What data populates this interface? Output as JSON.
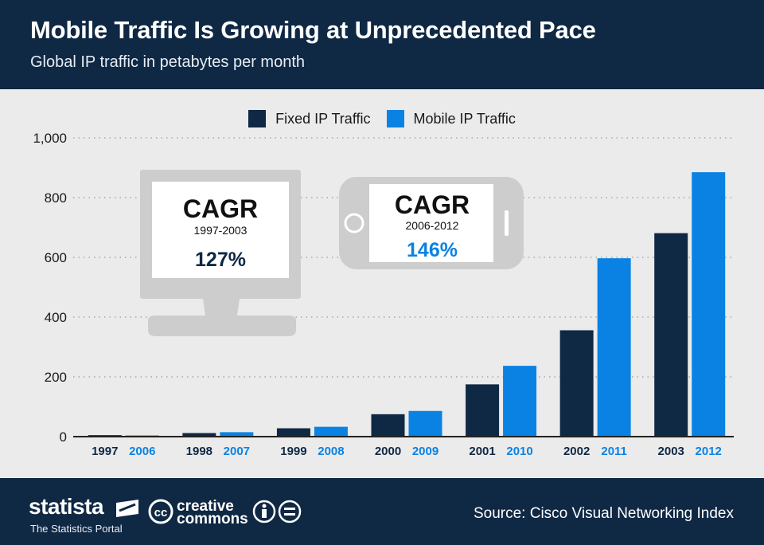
{
  "header": {
    "title": "Mobile Traffic Is Growing at Unprecedented Pace",
    "subtitle": "Global IP traffic in petabytes per month"
  },
  "legend": {
    "fixed_label": "Fixed IP Traffic",
    "mobile_label": "Mobile IP Traffic"
  },
  "colors": {
    "fixed": "#0f2844",
    "mobile": "#0a82e4",
    "device": "#cdcdcd"
  },
  "monitor_callout": {
    "title": "CAGR",
    "period": "1997-2003",
    "value": "127%"
  },
  "phone_callout": {
    "title": "CAGR",
    "period": "2006-2012",
    "value": "146%"
  },
  "chart_data": {
    "type": "bar",
    "title": "Mobile Traffic Is Growing at Unprecedented Pace",
    "subtitle": "Global IP traffic in petabytes per month",
    "ylim": [
      0,
      1000
    ],
    "yticks": [
      "0",
      "200",
      "400",
      "600",
      "800",
      "1,000"
    ],
    "ytick_values": [
      0,
      200,
      400,
      600,
      800,
      1000
    ],
    "grid": true,
    "legend_position": "top-center",
    "series": [
      {
        "name": "Fixed IP Traffic",
        "categories": [
          "1997",
          "1998",
          "1999",
          "2000",
          "2001",
          "2002",
          "2003"
        ],
        "values": [
          5,
          12,
          28,
          75,
          175,
          356,
          681
        ]
      },
      {
        "name": "Mobile IP Traffic",
        "categories": [
          "2006",
          "2007",
          "2008",
          "2009",
          "2010",
          "2011",
          "2012"
        ],
        "values": [
          4,
          15,
          33,
          86,
          237,
          597,
          885
        ]
      }
    ]
  },
  "footer": {
    "brand": "statista",
    "brand_tagline": "The Statistics Portal",
    "cc_text_1": "creative",
    "cc_text_2": "commons",
    "cc_badge": "cc",
    "source": "Source: Cisco Visual Networking Index"
  }
}
